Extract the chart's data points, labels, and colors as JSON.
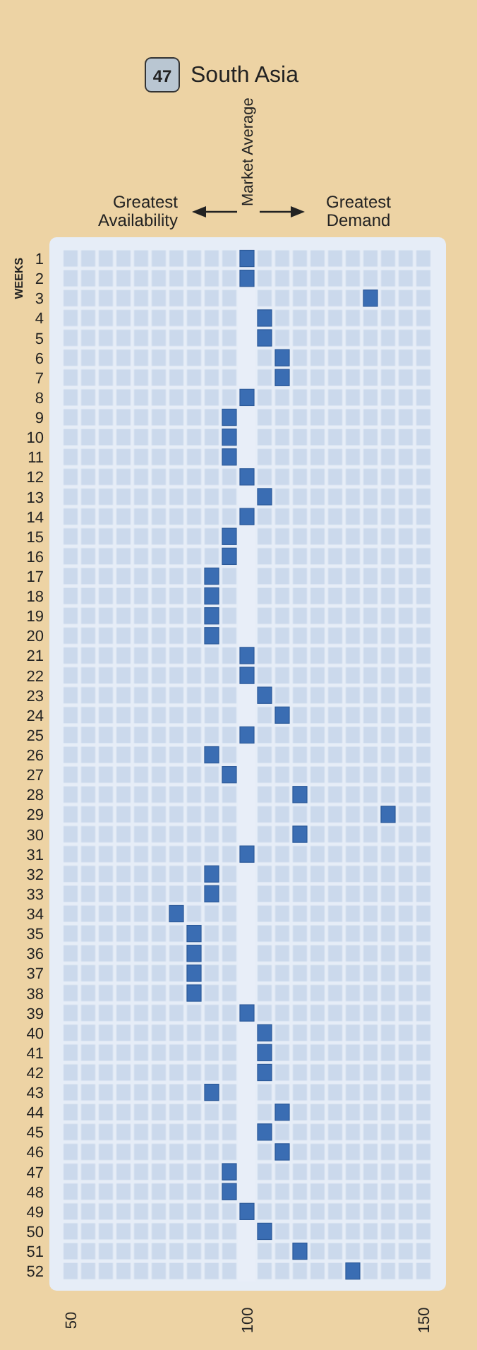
{
  "chart_data": {
    "type": "scatter",
    "title": "South Asia",
    "ylabel": "WEEKS",
    "orientation": "horizontal",
    "marker": "square",
    "annotations": [
      "47",
      "Greatest Availability",
      "Greatest Demand"
    ],
    "categories": [
      "1",
      "2",
      "3",
      "4",
      "5",
      "6",
      "7",
      "8",
      "9",
      "10",
      "11",
      "12",
      "13",
      "14",
      "15",
      "16",
      "17",
      "18",
      "19",
      "20",
      "21",
      "22",
      "23",
      "24",
      "25",
      "26",
      "27",
      "28",
      "29",
      "30",
      "31",
      "32",
      "33",
      "34",
      "35",
      "36",
      "37",
      "38",
      "39",
      "40",
      "41",
      "42",
      "43",
      "44",
      "45",
      "46",
      "47",
      "48",
      "49",
      "50",
      "51",
      "52"
    ],
    "series": [
      {
        "color": "#3a6db3",
        "values": [
          100,
          100,
          135,
          105,
          105,
          110,
          110,
          100,
          95,
          95,
          95,
          100,
          105,
          100,
          95,
          95,
          90,
          90,
          90,
          90,
          100,
          100,
          105,
          110,
          100,
          90,
          95,
          115,
          140,
          115,
          100,
          90,
          90,
          80,
          85,
          85,
          85,
          85,
          100,
          105,
          105,
          105,
          90,
          110,
          105,
          110,
          95,
          95,
          100,
          105,
          115,
          130
        ]
      }
    ],
    "xlim": [
      47.5,
      152.5
    ],
    "xticks": [
      50,
      100,
      150
    ],
    "bands": [
      {
        "axis": "x",
        "from": 97.5,
        "to": 102.5,
        "label": "Market Average",
        "color": "#e8eef8"
      }
    ]
  }
}
